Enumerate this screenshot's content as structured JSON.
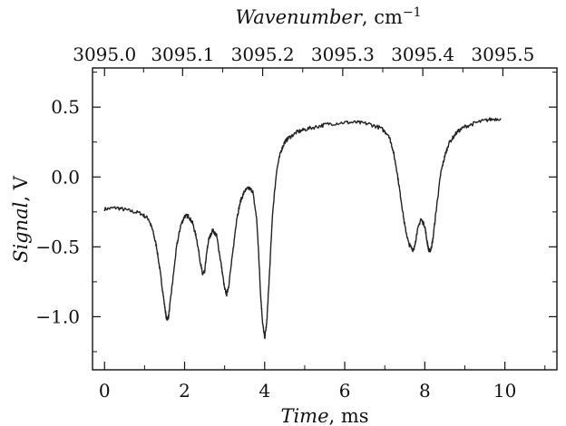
{
  "chart_data": {
    "type": "line",
    "title": "",
    "xlabel": {
      "italic": "Time",
      "rest": ", ms"
    },
    "ylabel": {
      "italic": "Signal",
      "rest": ", V"
    },
    "x2label": {
      "italic": "Wavenumber",
      "rest": ", cm",
      "sup": "−1"
    },
    "xlim": [
      -0.3,
      11.3
    ],
    "ylim": [
      -1.38,
      0.78
    ],
    "x_ticks": [
      0,
      2,
      4,
      6,
      8,
      10
    ],
    "x_tick_labels": [
      "0",
      "2",
      "4",
      "6",
      "8",
      "10"
    ],
    "y_ticks": [
      0.5,
      0.0,
      -0.5,
      -1.0
    ],
    "y_tick_labels": [
      "0.5",
      "0.0",
      "−0.5",
      "−1.0"
    ],
    "x2_ticks_at_time_ms": [
      0.0,
      1.95,
      3.95,
      5.95,
      7.95,
      9.95
    ],
    "x2_tick_labels": [
      "3095.0",
      "3095.1",
      "3095.2",
      "3095.3",
      "3095.4",
      "3095.5"
    ],
    "grid": false,
    "legend": "none",
    "series": [
      {
        "color": "#222222",
        "x": [
          0.0,
          0.3,
          0.6,
          0.9,
          1.1,
          1.2,
          1.3,
          1.4,
          1.5,
          1.55,
          1.6,
          1.7,
          1.8,
          1.9,
          2.0,
          2.1,
          2.2,
          2.3,
          2.4,
          2.45,
          2.5,
          2.55,
          2.6,
          2.7,
          2.8,
          2.9,
          3.0,
          3.05,
          3.1,
          3.2,
          3.3,
          3.4,
          3.5,
          3.6,
          3.7,
          3.8,
          3.85,
          3.9,
          3.95,
          4.0,
          4.05,
          4.1,
          4.2,
          4.3,
          4.4,
          4.5,
          4.6,
          4.8,
          5.0,
          5.3,
          5.6,
          6.0,
          6.3,
          6.6,
          6.9,
          7.1,
          7.2,
          7.3,
          7.4,
          7.5,
          7.6,
          7.7,
          7.75,
          7.8,
          7.9,
          8.0,
          8.05,
          8.1,
          8.15,
          8.2,
          8.3,
          8.4,
          8.5,
          8.6,
          8.8,
          9.0,
          9.3,
          9.6,
          9.9
        ],
        "y": [
          -0.23,
          -0.22,
          -0.24,
          -0.26,
          -0.3,
          -0.38,
          -0.5,
          -0.7,
          -0.92,
          -1.02,
          -1.0,
          -0.75,
          -0.5,
          -0.35,
          -0.28,
          -0.28,
          -0.33,
          -0.44,
          -0.62,
          -0.7,
          -0.68,
          -0.55,
          -0.45,
          -0.38,
          -0.42,
          -0.6,
          -0.8,
          -0.84,
          -0.78,
          -0.55,
          -0.3,
          -0.17,
          -0.1,
          -0.08,
          -0.1,
          -0.3,
          -0.55,
          -0.85,
          -1.05,
          -1.15,
          -1.05,
          -0.8,
          -0.25,
          0.05,
          0.18,
          0.25,
          0.28,
          0.32,
          0.34,
          0.36,
          0.38,
          0.39,
          0.39,
          0.38,
          0.35,
          0.3,
          0.2,
          0.05,
          -0.15,
          -0.35,
          -0.48,
          -0.52,
          -0.5,
          -0.4,
          -0.3,
          -0.35,
          -0.45,
          -0.53,
          -0.52,
          -0.45,
          -0.2,
          0.03,
          0.15,
          0.24,
          0.32,
          0.36,
          0.39,
          0.41,
          0.42
        ]
      }
    ]
  }
}
